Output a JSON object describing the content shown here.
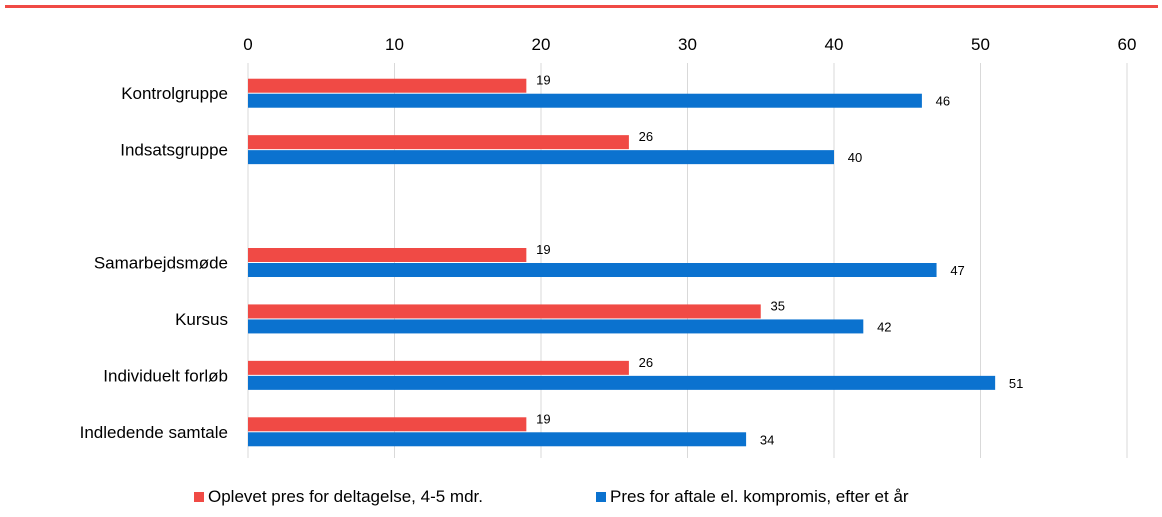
{
  "colors": {
    "accent_line": "#f04a45",
    "grid": "#d9d9d9"
  },
  "chart_data": {
    "type": "bar",
    "orientation": "horizontal",
    "xlim": [
      0,
      60
    ],
    "x_ticks": [
      "0",
      "10",
      "20",
      "30",
      "40",
      "50",
      "60"
    ],
    "x_axis_position": "top",
    "grid": true,
    "legend_position": "bottom",
    "categories": [
      "Kontrolgruppe",
      "Indsatsgruppe",
      "",
      "Samarbejdsmøde",
      "Kursus",
      "Individuelt forløb",
      "Indledende samtale"
    ],
    "series": [
      {
        "name": "Oplevet pres for deltagelse, 4-5 mdr.",
        "color": "#f04a45",
        "values": [
          19,
          26,
          null,
          19,
          35,
          26,
          19
        ]
      },
      {
        "name": "Pres for aftale el. kompromis, efter et år",
        "color": "#0b72cf",
        "values": [
          46,
          40,
          null,
          47,
          42,
          51,
          34
        ]
      }
    ]
  }
}
